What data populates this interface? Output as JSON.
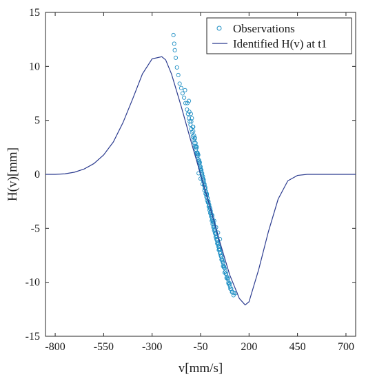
{
  "chart_data": {
    "type": "scatter",
    "title": "",
    "xlabel": "v[mm/s]",
    "ylabel": "H(v)[mm]",
    "xlim": [
      -850,
      750
    ],
    "ylim": [
      -15,
      15
    ],
    "xticks": [
      -800,
      -550,
      -300,
      -50,
      200,
      450,
      700
    ],
    "yticks": [
      -15,
      -10,
      -5,
      0,
      5,
      10,
      15
    ],
    "legend": {
      "position": "top-right",
      "entries": [
        {
          "label": "Observations",
          "marker": "circle",
          "color": "#1f8fc4"
        },
        {
          "label": "Identified H(v) at t1",
          "marker": "line",
          "color": "#2b3b8f"
        }
      ]
    },
    "series": [
      {
        "name": "Observations",
        "kind": "scatter",
        "color": "#1f8fc4",
        "x": [
          -190,
          -186,
          -183,
          -178,
          -172,
          -165,
          -158,
          -150,
          -143,
          -135,
          -128,
          -120,
          -115,
          -110,
          -106,
          -102,
          -98,
          -94,
          -90,
          -86,
          -82,
          -78,
          -74,
          -70,
          -66,
          -62,
          -58,
          -54,
          -50,
          -46,
          -42,
          -38,
          -34,
          -30,
          -26,
          -22,
          -18,
          -14,
          -10,
          -6,
          -2,
          2,
          6,
          10,
          14,
          18,
          22,
          26,
          30,
          34,
          38,
          42,
          46,
          50,
          54,
          58,
          62,
          66,
          70,
          74,
          78,
          82,
          86,
          90,
          94,
          98,
          102,
          108,
          115,
          122,
          130,
          -95,
          -88,
          -80,
          -72,
          -64,
          -56,
          -48,
          -40,
          -32,
          -24,
          -16,
          -8,
          0,
          8,
          16,
          24,
          32,
          40,
          48,
          56,
          64,
          72,
          -75,
          -68,
          -60,
          -52,
          -44,
          -36,
          -28,
          -20,
          -12,
          -4,
          4,
          12,
          20,
          28,
          36,
          44,
          -110,
          -100,
          -90,
          -84,
          -76,
          -66,
          -58,
          -50,
          -42,
          -34,
          -26,
          -18,
          -10,
          -2,
          6,
          14,
          22,
          30,
          38,
          46,
          54,
          62,
          70,
          80,
          90,
          100,
          -60,
          -50,
          -40,
          -30,
          -20,
          -10,
          0,
          10,
          20,
          30,
          40,
          50,
          -130,
          -118,
          -108,
          -98,
          -88,
          -80,
          -70,
          -62,
          -54,
          -46,
          -38,
          -30,
          -22,
          -14,
          -6,
          2,
          10,
          18,
          26,
          34,
          42,
          50,
          58,
          66,
          74,
          84,
          94,
          104,
          112,
          120
        ],
        "y": [
          12.9,
          12.1,
          11.5,
          10.8,
          9.9,
          9.2,
          8.4,
          8.0,
          7.5,
          7.1,
          6.6,
          6.0,
          5.6,
          5.2,
          4.9,
          4.6,
          4.2,
          3.9,
          3.5,
          3.2,
          2.9,
          2.6,
          2.3,
          2.0,
          1.7,
          1.4,
          1.1,
          0.8,
          0.5,
          0.2,
          -0.1,
          -0.4,
          -0.7,
          -1.0,
          -1.3,
          -1.6,
          -1.9,
          -2.2,
          -2.5,
          -2.8,
          -3.1,
          -3.4,
          -3.7,
          -4.0,
          -4.3,
          -4.6,
          -4.9,
          -5.2,
          -5.5,
          -5.8,
          -6.1,
          -6.4,
          -6.7,
          -7.0,
          -7.3,
          -7.6,
          -7.9,
          -8.2,
          -8.5,
          -8.7,
          -9.0,
          -9.2,
          -9.5,
          -9.7,
          -10.0,
          -10.2,
          -10.4,
          -10.6,
          -10.9,
          -11.0,
          -11.0,
          5.2,
          4.4,
          3.4,
          2.6,
          1.9,
          1.0,
          0.4,
          -0.4,
          -1.0,
          -1.8,
          -2.4,
          -3.0,
          -3.6,
          -4.3,
          -4.9,
          -5.4,
          -6.0,
          -6.5,
          -7.0,
          -7.6,
          -8.1,
          -8.6,
          2.5,
          1.9,
          1.2,
          0.6,
          0.0,
          -0.6,
          -1.3,
          -1.9,
          -2.6,
          -3.3,
          -3.9,
          -4.6,
          -5.2,
          -5.8,
          -6.4,
          -7.0,
          6.8,
          5.6,
          4.4,
          3.6,
          2.9,
          2.0,
          1.3,
          0.7,
          0.1,
          -0.5,
          -1.2,
          -1.8,
          -2.5,
          -3.1,
          -3.8,
          -4.4,
          -5.1,
          -5.7,
          -6.3,
          -6.9,
          -7.5,
          -8.0,
          -8.6,
          -9.2,
          -9.6,
          -10.1,
          0.1,
          -0.4,
          -0.9,
          -1.5,
          -2.1,
          -2.6,
          -3.2,
          -3.8,
          -4.3,
          -4.9,
          -5.4,
          -6.0,
          7.8,
          6.6,
          5.8,
          4.9,
          4.0,
          3.3,
          2.5,
          1.8,
          1.1,
          0.4,
          -0.2,
          -0.9,
          -1.6,
          -2.2,
          -2.9,
          -3.5,
          -4.2,
          -4.8,
          -5.5,
          -6.1,
          -6.7,
          -7.3,
          -7.9,
          -8.5,
          -9.1,
          -9.6,
          -10.1,
          -10.6,
          -10.9,
          -11.2
        ]
      },
      {
        "name": "Identified H(v) at t1",
        "kind": "line",
        "color": "#2b3b8f",
        "x": [
          -850,
          -800,
          -750,
          -700,
          -650,
          -600,
          -550,
          -500,
          -450,
          -400,
          -350,
          -300,
          -250,
          -230,
          -200,
          -150,
          -100,
          -50,
          0,
          50,
          100,
          150,
          180,
          200,
          250,
          300,
          350,
          400,
          450,
          500,
          550,
          600,
          650,
          700,
          750
        ],
        "y": [
          0,
          0,
          0.05,
          0.2,
          0.5,
          1.0,
          1.8,
          3.0,
          4.8,
          7.0,
          9.3,
          10.7,
          10.9,
          10.6,
          9.3,
          6.3,
          3.1,
          0.0,
          -3.1,
          -6.3,
          -9.3,
          -11.5,
          -12.1,
          -11.8,
          -8.8,
          -5.3,
          -2.3,
          -0.6,
          -0.1,
          0,
          0,
          0,
          0,
          0,
          0
        ]
      }
    ]
  }
}
